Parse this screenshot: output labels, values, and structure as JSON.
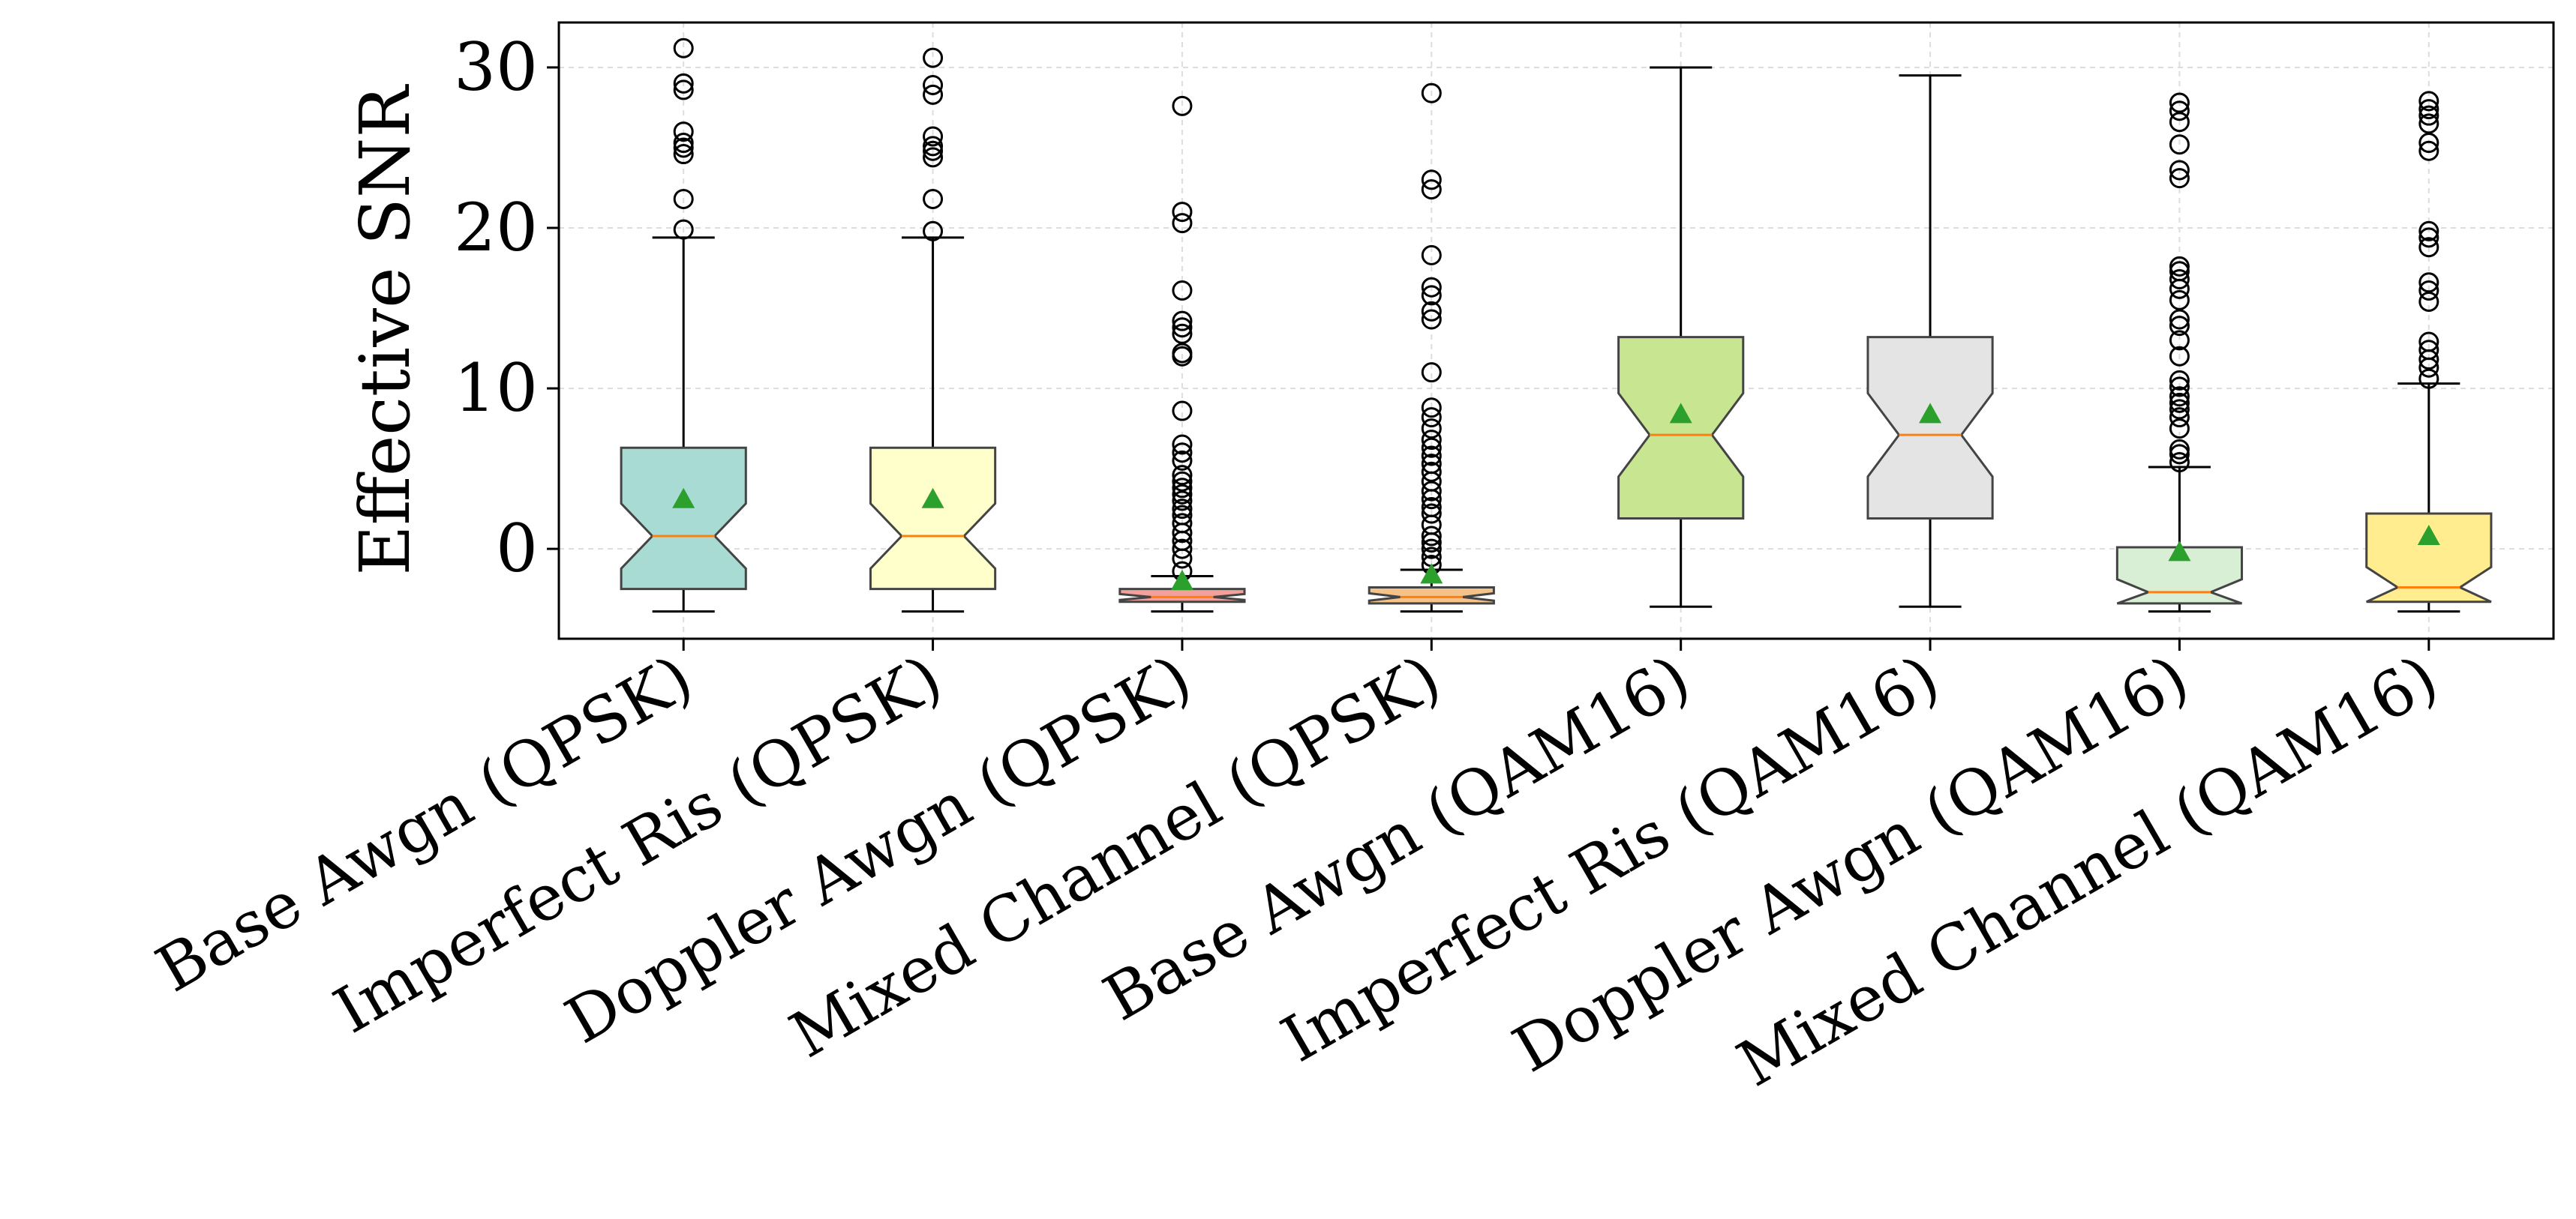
{
  "chart_data": {
    "type": "box",
    "title": "",
    "xlabel": "",
    "ylabel": "Effective SNR",
    "ylim": [
      -5.6,
      32.8
    ],
    "yticks": [
      0,
      10,
      20,
      30
    ],
    "grid": true,
    "categories": [
      "Base Awgn (QPSK)",
      "Imperfect Ris (QPSK)",
      "Doppler Awgn (QPSK)",
      "Mixed Channel (QPSK)",
      "Base Awgn (QAM16)",
      "Imperfect Ris (QAM16)",
      "Doppler Awgn (QAM16)",
      "Mixed Channel (QAM16)"
    ],
    "boxes": [
      {
        "whisker_low": -3.9,
        "q1": -2.5,
        "median": 0.8,
        "q3": 6.3,
        "whisker_high": 19.4,
        "mean": 3.1,
        "color": "#a8dbd3",
        "outliers": [
          19.9,
          21.8,
          24.6,
          25.0,
          25.3,
          26.0,
          28.6,
          29.0,
          31.2
        ]
      },
      {
        "whisker_low": -3.9,
        "q1": -2.5,
        "median": 0.8,
        "q3": 6.3,
        "whisker_high": 19.4,
        "mean": 3.1,
        "color": "#ffffcc",
        "outliers": [
          19.8,
          21.8,
          24.4,
          24.8,
          25.1,
          25.7,
          28.3,
          28.9,
          30.6
        ]
      },
      {
        "whisker_low": -3.9,
        "q1": -3.3,
        "median": -3.0,
        "q3": -2.5,
        "whisker_high": -1.7,
        "mean": -2.0,
        "color": "#f4a09a",
        "outliers": [
          -1.4,
          -0.6,
          0.0,
          0.5,
          1.0,
          1.6,
          2.1,
          2.5,
          3.0,
          3.4,
          3.8,
          4.2,
          4.6,
          5.5,
          6.0,
          6.5,
          8.6,
          12.0,
          12.2,
          13.4,
          13.8,
          14.2,
          16.1,
          20.3,
          21.0,
          27.6
        ]
      },
      {
        "whisker_low": -3.9,
        "q1": -3.4,
        "median": -3.0,
        "q3": -2.4,
        "whisker_high": -1.3,
        "mean": -1.6,
        "color": "#f5c28a",
        "outliers": [
          -1.0,
          -0.5,
          0.0,
          0.4,
          0.8,
          1.5,
          2.2,
          2.6,
          3.1,
          3.6,
          4.2,
          4.8,
          5.3,
          5.8,
          6.3,
          6.8,
          7.5,
          8.2,
          8.8,
          11.0,
          14.3,
          14.8,
          15.8,
          16.3,
          18.3,
          22.4,
          23.0,
          28.4
        ]
      },
      {
        "whisker_low": -3.6,
        "q1": 1.9,
        "median": 7.1,
        "q3": 13.2,
        "whisker_high": 30.0,
        "mean": 8.4,
        "color": "#c8e691",
        "outliers": []
      },
      {
        "whisker_low": -3.6,
        "q1": 1.9,
        "median": 7.1,
        "q3": 13.2,
        "whisker_high": 29.5,
        "mean": 8.4,
        "color": "#e4e4e4",
        "outliers": []
      },
      {
        "whisker_low": -3.9,
        "q1": -3.4,
        "median": -2.7,
        "q3": 0.1,
        "whisker_high": 5.1,
        "mean": -0.2,
        "color": "#d8efd6",
        "outliers": [
          5.4,
          5.9,
          6.2,
          7.5,
          8.2,
          8.7,
          9.1,
          9.5,
          10.1,
          10.5,
          12.0,
          13.0,
          13.9,
          14.3,
          15.5,
          16.2,
          16.8,
          17.3,
          17.6,
          23.1,
          23.6,
          25.2,
          26.6,
          27.3,
          27.8
        ]
      },
      {
        "whisker_low": -3.9,
        "q1": -3.3,
        "median": -2.4,
        "q3": 2.2,
        "whisker_high": 10.3,
        "mean": 0.8,
        "color": "#ffed8f",
        "outliers": [
          10.6,
          11.3,
          11.8,
          12.4,
          12.9,
          15.4,
          16.1,
          16.6,
          18.8,
          19.4,
          19.8,
          24.8,
          25.3,
          26.5,
          27.0,
          27.4,
          27.9
        ]
      }
    ]
  }
}
